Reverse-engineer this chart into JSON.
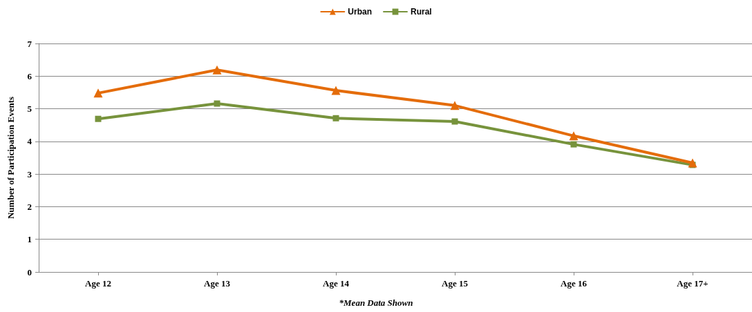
{
  "chart_data": {
    "type": "line",
    "ylabel": "Number of Participation Events",
    "annotations": [
      "*Mean Data Shown"
    ],
    "categories": [
      "Age 12",
      "Age 13",
      "Age 14",
      "Age 15",
      "Age 16",
      "Age 17+"
    ],
    "series": [
      {
        "name": "Urban",
        "color": "#e46c0a",
        "marker": "triangle",
        "values": [
          5.48,
          6.19,
          5.56,
          5.1,
          4.17,
          3.34
        ]
      },
      {
        "name": "Rural",
        "color": "#77933c",
        "marker": "square",
        "values": [
          4.69,
          5.16,
          4.71,
          4.61,
          3.91,
          3.28
        ]
      }
    ],
    "ylim": [
      0,
      7
    ],
    "yticks": [
      0,
      1,
      2,
      3,
      4,
      5,
      6,
      7
    ],
    "grid": "y",
    "legend": "top",
    "line_style": "solid"
  }
}
